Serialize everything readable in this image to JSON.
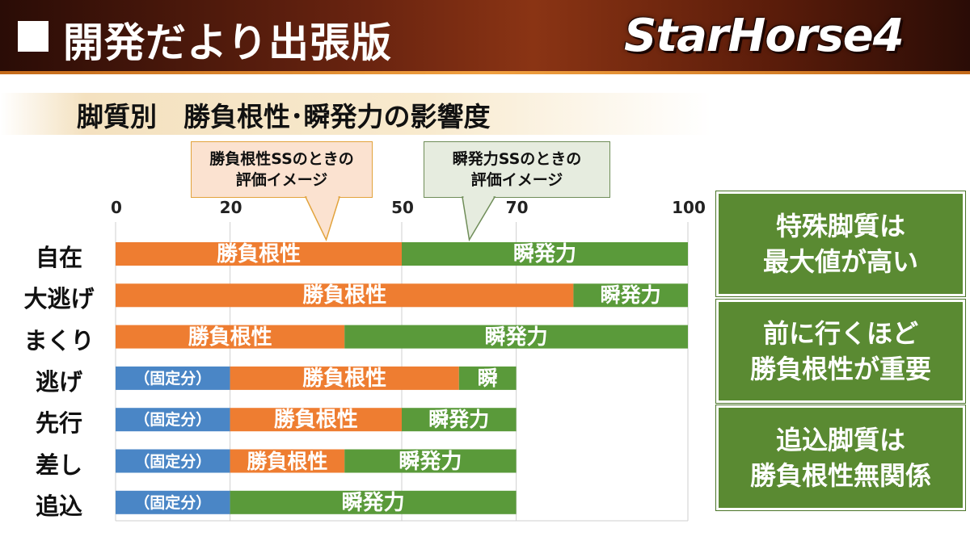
{
  "header": {
    "title": "開発だより出張版",
    "logo_text": "StarHorse4"
  },
  "subtitle": "脚質別　勝負根性･瞬発力の影響度",
  "callouts": [
    {
      "lines": [
        "勝負根性SSのときの",
        "評価イメージ"
      ]
    },
    {
      "lines": [
        "瞬発力SSのときの",
        "評価イメージ"
      ]
    }
  ],
  "chart_data": {
    "type": "bar",
    "orientation": "horizontal",
    "stacked": true,
    "title": "脚質別　勝負根性･瞬発力の影響度",
    "xlim": [
      0,
      100
    ],
    "x_ticks": [
      0,
      20,
      50,
      70,
      100
    ],
    "grid": true,
    "categories": [
      "自在",
      "大逃げ",
      "まくり",
      "逃げ",
      "先行",
      "差し",
      "追込"
    ],
    "segment_labels": {
      "fixed": "（固定分）",
      "guts": "勝負根性",
      "burst": "瞬発力",
      "burst_short": "瞬"
    },
    "series": [
      {
        "key": "fixed",
        "values": [
          0,
          0,
          0,
          20,
          20,
          20,
          20
        ],
        "color": "#4a86c6"
      },
      {
        "key": "guts",
        "values": [
          50,
          80,
          40,
          40,
          30,
          20,
          0
        ],
        "color": "#ee7d31"
      },
      {
        "key": "burst",
        "values": [
          50,
          20,
          60,
          10,
          20,
          30,
          50
        ],
        "color": "#5a9a3a"
      }
    ]
  },
  "notes": [
    {
      "lines": [
        "特殊脚質は",
        "最大値が高い"
      ]
    },
    {
      "lines": [
        "前に行くほど",
        "勝負根性が重要"
      ]
    },
    {
      "lines": [
        "追込脚質は",
        "勝負根性無関係"
      ]
    }
  ],
  "colors": {
    "fixed": "#4a86c6",
    "guts": "#ee7d31",
    "burst": "#5a9a3a",
    "note_bg": "#5a8a32"
  }
}
